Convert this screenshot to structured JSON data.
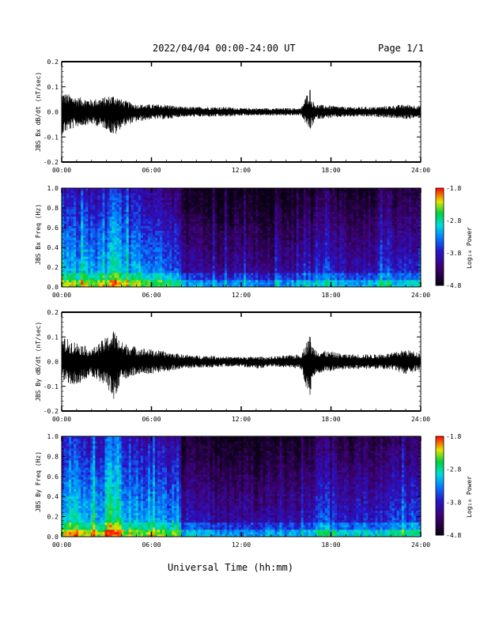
{
  "header": {
    "title": "2022/04/04  00:00-24:00 UT",
    "page": "Page 1/1"
  },
  "footer": {
    "xlabel": "Universal Time (hh:mm)"
  },
  "colors": {
    "trace": "#000000",
    "axis": "#000000",
    "background": "#ffffff"
  },
  "chart_data": [
    {
      "type": "line",
      "title": "",
      "ylabel": "JBS Bx dB/dt (nT/sec)",
      "xlabel": "",
      "xlim": [
        0,
        24
      ],
      "ylim": [
        -0.2,
        0.2
      ],
      "xticks": [
        "00:00",
        "06:00",
        "12:00",
        "18:00",
        "24:00"
      ],
      "yticks": [
        "-0.2",
        "-0.1",
        "0.0",
        "0.1",
        "0.2"
      ],
      "series": [
        {
          "x": [
            0,
            1,
            2,
            3,
            3.5,
            4,
            5,
            6,
            7,
            8,
            9,
            10,
            11,
            12,
            13,
            14,
            15,
            16,
            16.6,
            16.7,
            17,
            18,
            19,
            20,
            21,
            22,
            23,
            24
          ],
          "y_max": [
            0.08,
            0.06,
            0.05,
            0.06,
            0.07,
            0.05,
            0.03,
            0.03,
            0.03,
            0.02,
            0.02,
            0.02,
            0.02,
            0.015,
            0.015,
            0.015,
            0.015,
            0.015,
            0.1,
            0.05,
            0.03,
            0.025,
            0.02,
            0.02,
            0.02,
            0.025,
            0.03,
            0.025
          ],
          "y_min": [
            -0.09,
            -0.06,
            -0.05,
            -0.07,
            -0.1,
            -0.06,
            -0.04,
            -0.03,
            -0.03,
            -0.02,
            -0.02,
            -0.02,
            -0.02,
            -0.015,
            -0.015,
            -0.015,
            -0.015,
            -0.015,
            -0.08,
            -0.06,
            -0.03,
            -0.025,
            -0.02,
            -0.02,
            -0.02,
            -0.025,
            -0.03,
            -0.025
          ]
        }
      ]
    },
    {
      "type": "heatmap",
      "title": "",
      "ylabel": "JBS Bx Freq (Hz)",
      "xlabel": "",
      "xlim": [
        0,
        24
      ],
      "ylim": [
        0,
        1.0
      ],
      "xticks": [
        "00:00",
        "06:00",
        "12:00",
        "18:00",
        "24:00"
      ],
      "yticks": [
        "0.0",
        "0.2",
        "0.4",
        "0.6",
        "0.8",
        "1.0"
      ],
      "colorbar": {
        "label": "Log₁₀ Power",
        "range": [
          -4.8,
          -1.8
        ],
        "ticks": [
          "-1.8",
          "-2.8",
          "-3.8",
          "-4.8"
        ]
      },
      "hour_activity": [
        0.62,
        0.6,
        0.58,
        0.72,
        0.6,
        0.55,
        0.56,
        0.5,
        0.3,
        0.3,
        0.28,
        0.3,
        0.3,
        0.28,
        0.28,
        0.3,
        0.32,
        0.45,
        0.38,
        0.35,
        0.35,
        0.38,
        0.4,
        0.42
      ]
    },
    {
      "type": "line",
      "title": "",
      "ylabel": "JBS By dB/dt (nT/sec)",
      "xlabel": "",
      "xlim": [
        0,
        24
      ],
      "ylim": [
        -0.2,
        0.2
      ],
      "xticks": [
        "00:00",
        "06:00",
        "12:00",
        "18:00",
        "24:00"
      ],
      "yticks": [
        "-0.2",
        "-0.1",
        "0.0",
        "0.1",
        "0.2"
      ],
      "series": [
        {
          "x": [
            0,
            1,
            2,
            3,
            3.5,
            4,
            5,
            6,
            7,
            8,
            9,
            10,
            11,
            12,
            13,
            14,
            15,
            16,
            16.6,
            16.7,
            17,
            18,
            19,
            20,
            21,
            22,
            23,
            24
          ],
          "y_max": [
            0.1,
            0.08,
            0.05,
            0.1,
            0.13,
            0.08,
            0.06,
            0.05,
            0.04,
            0.03,
            0.025,
            0.025,
            0.02,
            0.02,
            0.02,
            0.02,
            0.025,
            0.03,
            0.11,
            0.07,
            0.05,
            0.04,
            0.03,
            0.03,
            0.03,
            0.035,
            0.05,
            0.035
          ],
          "y_min": [
            -0.08,
            -0.1,
            -0.06,
            -0.1,
            -0.16,
            -0.08,
            -0.05,
            -0.05,
            -0.04,
            -0.03,
            -0.025,
            -0.025,
            -0.02,
            -0.02,
            -0.03,
            -0.02,
            -0.025,
            -0.03,
            -0.18,
            -0.07,
            -0.05,
            -0.04,
            -0.03,
            -0.03,
            -0.03,
            -0.035,
            -0.05,
            -0.035
          ]
        }
      ]
    },
    {
      "type": "heatmap",
      "title": "",
      "ylabel": "JBS By Freq (Hz)",
      "xlabel": "",
      "xlim": [
        0,
        24
      ],
      "ylim": [
        0,
        1.0
      ],
      "xticks": [
        "00:00",
        "06:00",
        "12:00",
        "18:00",
        "24:00"
      ],
      "yticks": [
        "0.0",
        "0.2",
        "0.4",
        "0.6",
        "0.8",
        "1.0"
      ],
      "colorbar": {
        "label": "Log₁₀ Power",
        "range": [
          -4.8,
          -1.8
        ],
        "ticks": [
          "-1.8",
          "-2.8",
          "-3.8",
          "-4.8"
        ]
      },
      "hour_activity": [
        0.66,
        0.64,
        0.62,
        0.78,
        0.64,
        0.6,
        0.6,
        0.55,
        0.35,
        0.32,
        0.3,
        0.3,
        0.3,
        0.3,
        0.3,
        0.32,
        0.35,
        0.5,
        0.42,
        0.4,
        0.4,
        0.42,
        0.45,
        0.46
      ]
    }
  ]
}
